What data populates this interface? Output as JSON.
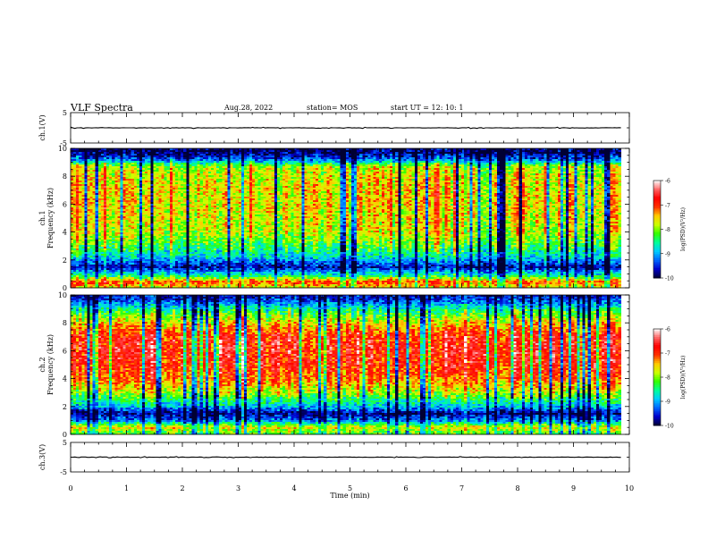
{
  "header": {
    "title": "VLF Spectra",
    "date": "Aug.28, 2022",
    "station": "station= MOS",
    "start_ut": "start UT =   12: 10: 1"
  },
  "colors": {
    "colormap": [
      "#000033",
      "#0000cc",
      "#0066ff",
      "#00ccff",
      "#00ff99",
      "#33ff00",
      "#ccff00",
      "#ffcc00",
      "#ff3300",
      "#ff0000",
      "#ff6666",
      "#ffffff"
    ]
  },
  "chart_data": [
    {
      "type": "line",
      "name": "ch1-waveform",
      "ylabel": "ch.1(V)",
      "ylim": [
        -5,
        5
      ],
      "yticks": [
        "5",
        "-5"
      ],
      "xlim": [
        0,
        10
      ],
      "x": [
        0,
        9.85
      ],
      "values": [
        0,
        0
      ]
    },
    {
      "type": "heatmap",
      "name": "ch1-spectrogram",
      "ylabel": "ch.1\nFrequency (kHz)",
      "ylim": [
        0,
        10
      ],
      "yticks": [
        "0",
        "2",
        "4",
        "6",
        "8",
        "10"
      ],
      "xlim": [
        0,
        10
      ],
      "x_extent": [
        0,
        9.85
      ],
      "colorbar": {
        "label": "log(PSD)(V²/Hz)",
        "range": [
          -10,
          -6
        ],
        "ticks": [
          "-6",
          "-7",
          "-8",
          "-9",
          "-10"
        ]
      },
      "freq_profile": [
        {
          "f": 0.1,
          "v": -7.6
        },
        {
          "f": 0.4,
          "v": -7.0
        },
        {
          "f": 0.9,
          "v": -8.6
        },
        {
          "f": 1.5,
          "v": -9.7
        },
        {
          "f": 2.2,
          "v": -8.8
        },
        {
          "f": 3.0,
          "v": -8.3
        },
        {
          "f": 4.0,
          "v": -7.8
        },
        {
          "f": 5.0,
          "v": -7.7
        },
        {
          "f": 6.0,
          "v": -7.6
        },
        {
          "f": 7.0,
          "v": -7.6
        },
        {
          "f": 8.0,
          "v": -7.7
        },
        {
          "f": 8.7,
          "v": -7.9
        },
        {
          "f": 9.2,
          "v": -9.3
        },
        {
          "f": 9.7,
          "v": -9.9
        },
        {
          "f": 10.0,
          "v": -9.9
        }
      ]
    },
    {
      "type": "heatmap",
      "name": "ch2-spectrogram",
      "ylabel": "ch.2\nFrequency (kHz)",
      "ylim": [
        0,
        10
      ],
      "yticks": [
        "0",
        "2",
        "4",
        "6",
        "8",
        "10"
      ],
      "xlim": [
        0,
        10
      ],
      "x_extent": [
        0,
        9.85
      ],
      "colorbar": {
        "label": "log(PSD)(V²/Hz)",
        "range": [
          -10,
          -6
        ],
        "ticks": [
          "-6",
          "-7",
          "-8",
          "-9",
          "-10"
        ]
      },
      "freq_profile": [
        {
          "f": 0.1,
          "v": -8.2
        },
        {
          "f": 0.5,
          "v": -7.6
        },
        {
          "f": 1.0,
          "v": -9.2
        },
        {
          "f": 1.5,
          "v": -9.8
        },
        {
          "f": 2.0,
          "v": -8.9
        },
        {
          "f": 3.0,
          "v": -7.9
        },
        {
          "f": 4.0,
          "v": -7.2
        },
        {
          "f": 5.0,
          "v": -6.9
        },
        {
          "f": 6.0,
          "v": -6.8
        },
        {
          "f": 7.0,
          "v": -6.9
        },
        {
          "f": 8.0,
          "v": -7.6
        },
        {
          "f": 9.0,
          "v": -8.6
        },
        {
          "f": 9.6,
          "v": -9.4
        },
        {
          "f": 10.0,
          "v": -9.7
        }
      ]
    },
    {
      "type": "line",
      "name": "ch3-waveform",
      "ylabel": "ch.3(V)",
      "ylim": [
        -5,
        5
      ],
      "yticks": [
        "5",
        "-5"
      ],
      "xlim": [
        0,
        10
      ],
      "x": [
        0,
        9.85
      ],
      "values": [
        0,
        0
      ]
    }
  ],
  "time_axis": {
    "label": "Time  (min)",
    "range": [
      0,
      10
    ],
    "ticks": [
      "0",
      "1",
      "2",
      "3",
      "4",
      "5",
      "6",
      "7",
      "8",
      "9",
      "10"
    ]
  }
}
